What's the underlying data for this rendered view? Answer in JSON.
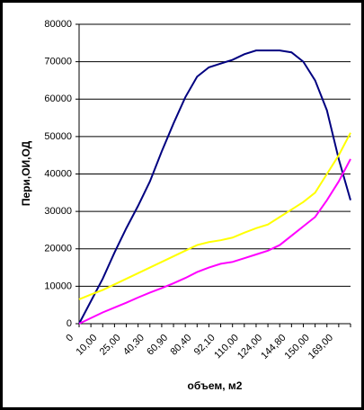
{
  "chart_data": {
    "type": "line",
    "y_label": "Пери,ОИ,ОД",
    "x_label": "объем, м2",
    "categories": [
      "0",
      null,
      "10,00",
      null,
      "25,00",
      null,
      "40,30",
      null,
      "60,90",
      null,
      "80,40",
      null,
      "92,10",
      null,
      "110,00",
      null,
      "124,00",
      null,
      "144,80",
      null,
      "150,00",
      null,
      "169,00",
      null
    ],
    "series": [
      {
        "color": "#000080",
        "values": [
          0,
          6000,
          12000,
          19000,
          25500,
          31500,
          38000,
          46000,
          53500,
          60500,
          66000,
          68500,
          69500,
          70500,
          72000,
          73000,
          73000,
          73000,
          72500,
          70000,
          65000,
          57000,
          44000,
          33000
        ]
      },
      {
        "color": "#ffff00",
        "values": [
          6500,
          7800,
          9000,
          10500,
          12000,
          13500,
          15000,
          16500,
          18000,
          19500,
          21000,
          21800,
          22300,
          23000,
          24300,
          25500,
          26500,
          28500,
          30500,
          32500,
          35000,
          40000,
          45000,
          51000
        ]
      },
      {
        "color": "#ff00ff",
        "values": [
          0,
          1500,
          3000,
          4300,
          5600,
          7000,
          8300,
          9500,
          10800,
          12200,
          13800,
          15000,
          16000,
          16500,
          17500,
          18500,
          19500,
          21000,
          23500,
          26000,
          28500,
          33000,
          38000,
          44000
        ]
      }
    ],
    "ylim": [
      0,
      80000
    ],
    "yticks": [
      0,
      10000,
      20000,
      30000,
      40000,
      50000,
      60000,
      70000,
      80000
    ],
    "grid": true
  }
}
